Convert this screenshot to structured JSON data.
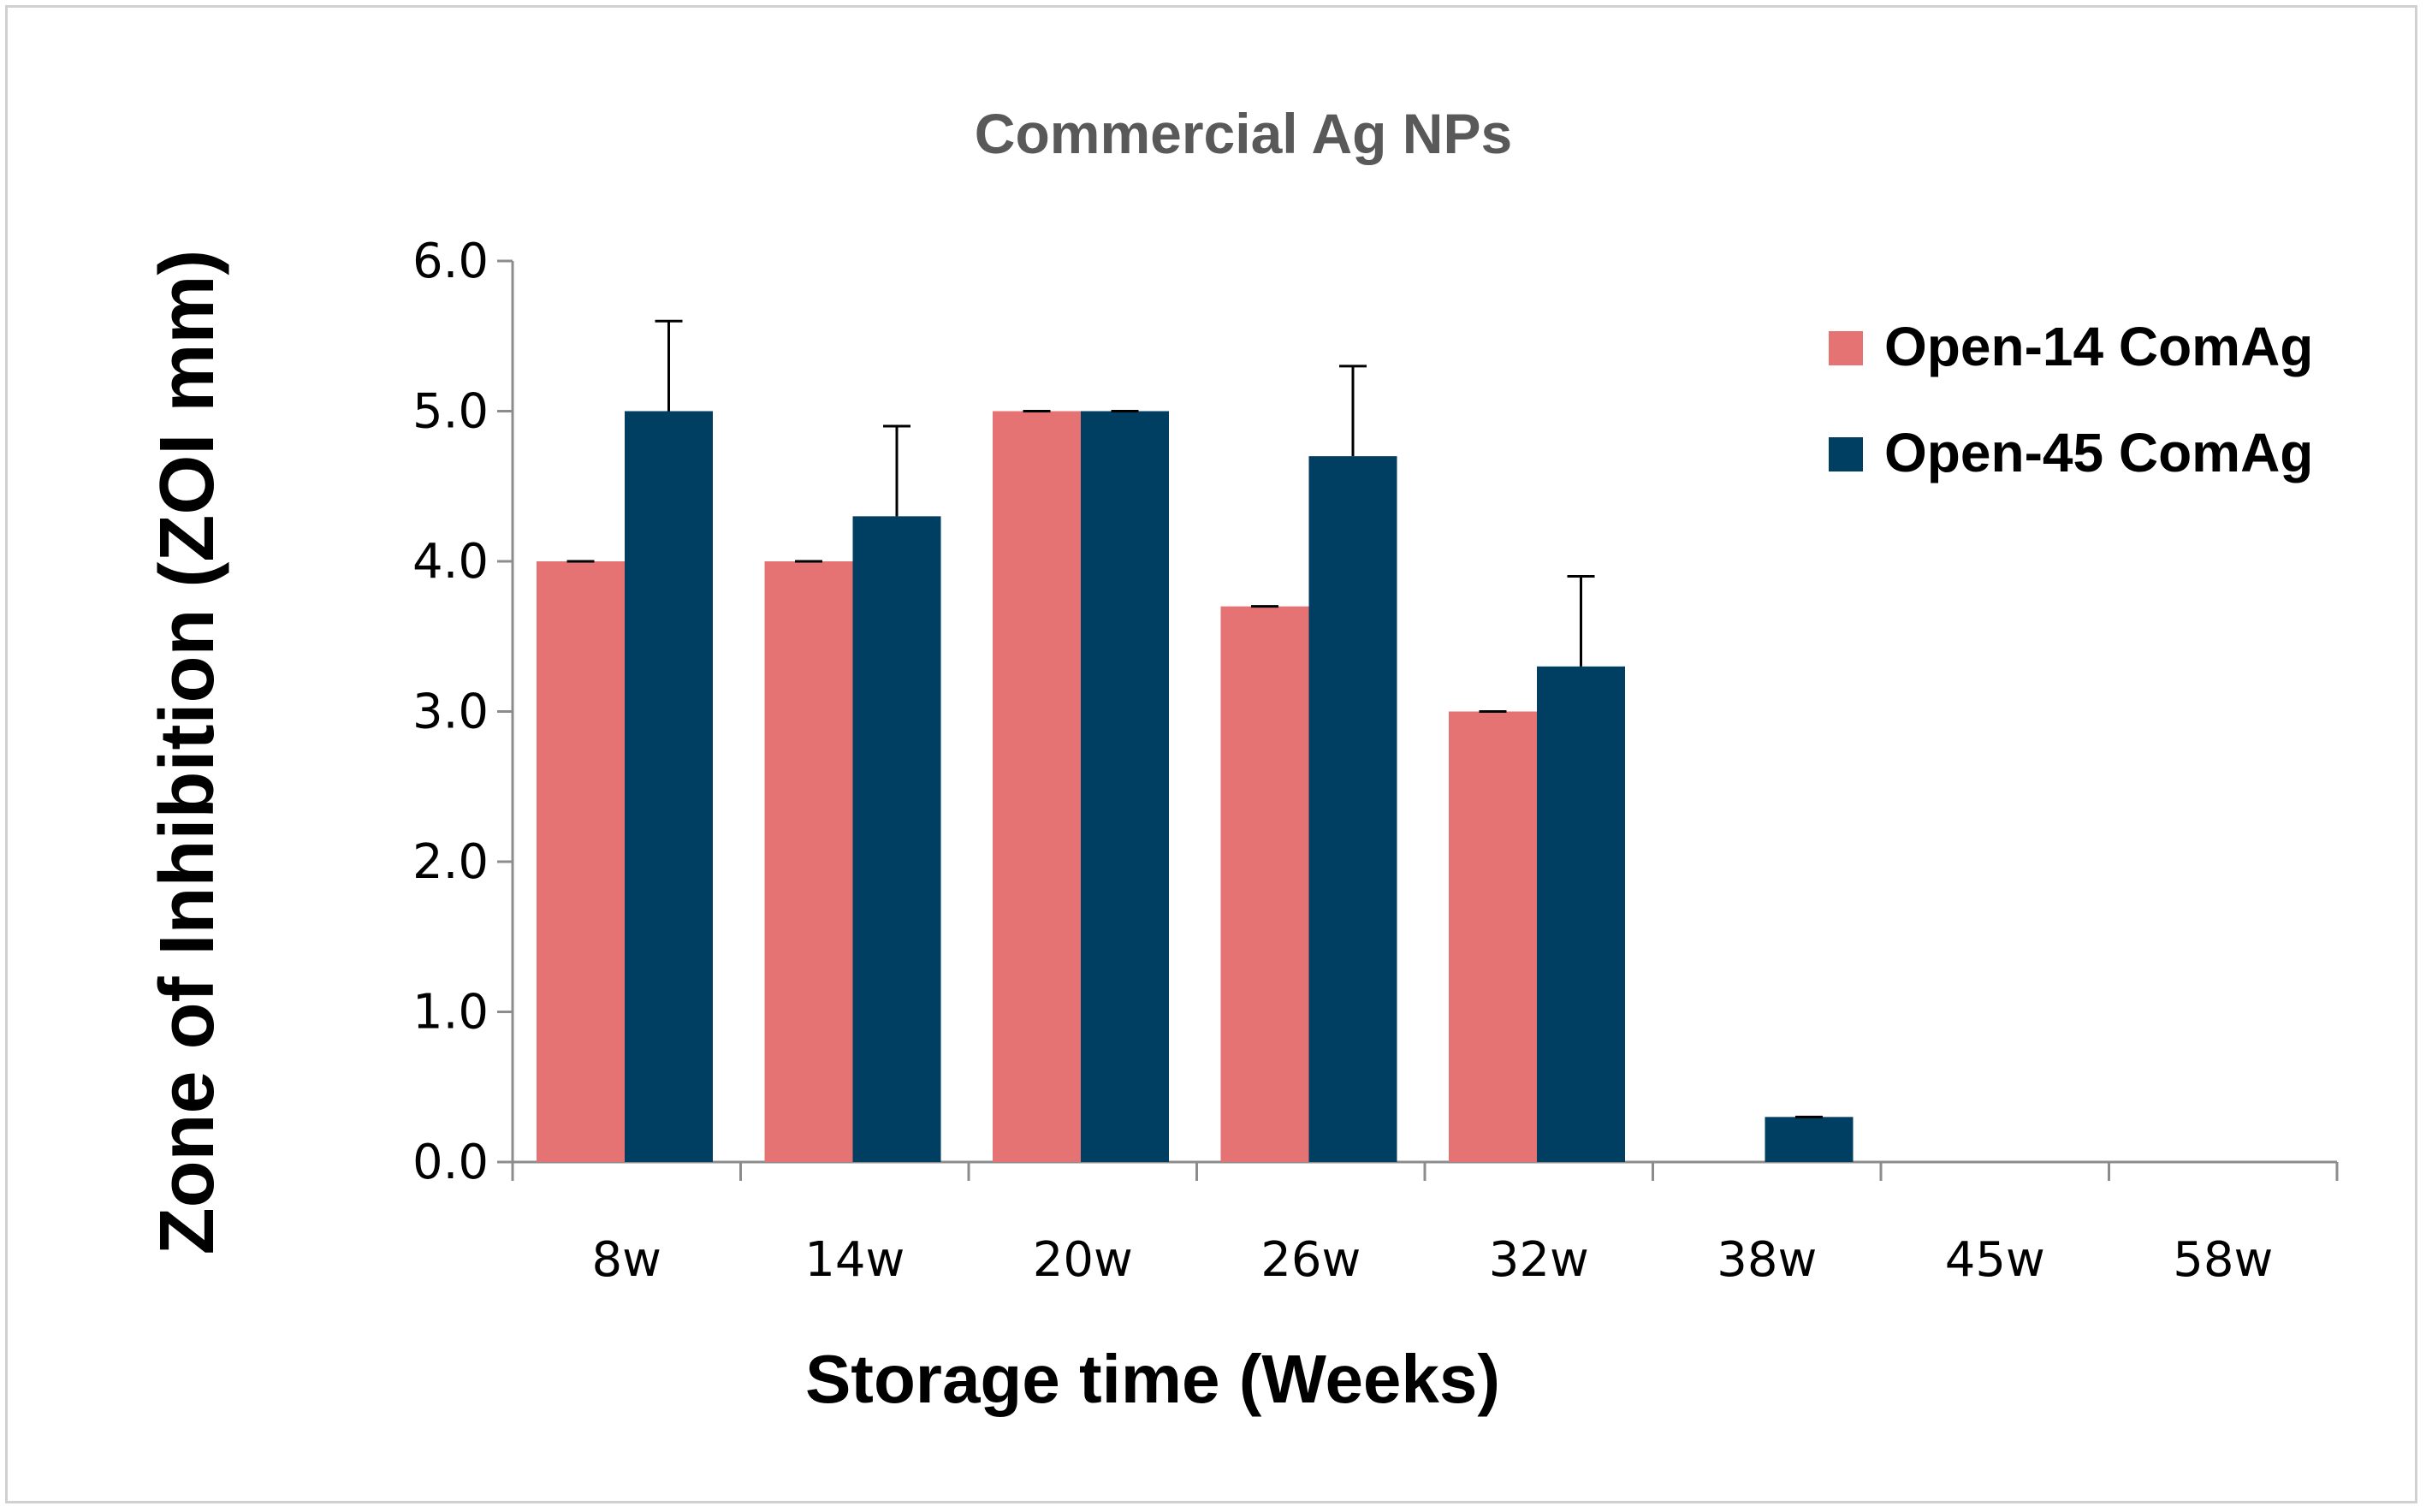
{
  "chart_data": {
    "type": "bar",
    "title": "Commercial Ag NPs",
    "xlabel": "Storage time (Weeks)",
    "ylabel": "Zone of Inhibition (ZOI mm)",
    "ylim": [
      0,
      6
    ],
    "yticks": [
      "0.0",
      "1.0",
      "2.0",
      "3.0",
      "4.0",
      "5.0",
      "6.0"
    ],
    "categories": [
      "8w",
      "14w",
      "20w",
      "26w",
      "32w",
      "38w",
      "45w",
      "58w"
    ],
    "series": [
      {
        "name": "Open-14 ComAg",
        "color": "#E57373",
        "values": [
          4.0,
          4.0,
          5.0,
          3.7,
          3.0,
          0,
          0,
          0
        ],
        "errors": [
          0,
          0,
          0,
          0,
          0,
          0,
          0,
          0
        ]
      },
      {
        "name": "Open-45 ComAg",
        "color": "#003E62",
        "values": [
          5.0,
          4.3,
          5.0,
          4.7,
          3.3,
          0.3,
          0,
          0
        ],
        "errors": [
          0.6,
          0.6,
          0,
          0.6,
          0.6,
          0,
          0,
          0
        ]
      }
    ],
    "legend": "top-right",
    "grid": false
  }
}
